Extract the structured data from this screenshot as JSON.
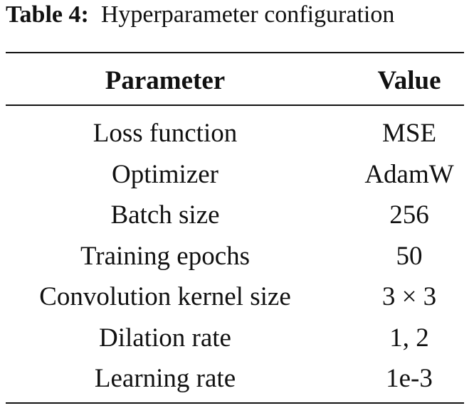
{
  "caption": {
    "label": "Table 4:",
    "title": "Hyperparameter configuration"
  },
  "table": {
    "columns": [
      "Parameter",
      "Value"
    ],
    "rows": [
      [
        "Loss function",
        "MSE"
      ],
      [
        "Optimizer",
        "AdamW"
      ],
      [
        "Batch size",
        "256"
      ],
      [
        "Training epochs",
        "50"
      ],
      [
        "Convolution kernel size",
        "3 × 3"
      ],
      [
        "Dilation rate",
        "1, 2"
      ],
      [
        "Learning rate",
        "1e-3"
      ]
    ]
  }
}
